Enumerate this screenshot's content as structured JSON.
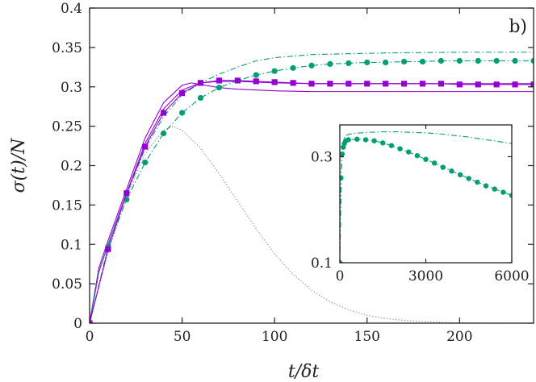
{
  "chart_data": [
    {
      "type": "line",
      "panel_label": "b)",
      "xlabel": "t/δt",
      "ylabel": "σ(t)/N",
      "xlim": [
        0,
        240
      ],
      "ylim": [
        0,
        0.4
      ],
      "xticks": [
        0,
        50,
        100,
        150,
        200
      ],
      "xtick_labels": [
        "0",
        "50",
        "100",
        "150",
        "200"
      ],
      "yticks": [
        0,
        0.05,
        0.1,
        0.15,
        0.2,
        0.25,
        0.3,
        0.35,
        0.4
      ],
      "ytick_labels": [
        "0",
        "0.05",
        "0.1",
        "0.15",
        "0.2",
        "0.25",
        "0.3",
        "0.35",
        "0.4"
      ],
      "grid": false,
      "legend": "none",
      "series": [
        {
          "style": "dotted",
          "color": "#808080",
          "marker": "none",
          "x": [
            0,
            10,
            20,
            30,
            40,
            45,
            50,
            60,
            70,
            80,
            90,
            100,
            110,
            120,
            130,
            140,
            150,
            160,
            170,
            180,
            190,
            200,
            210,
            220,
            240
          ],
          "y": [
            0,
            0.09,
            0.16,
            0.215,
            0.245,
            0.25,
            0.245,
            0.222,
            0.19,
            0.155,
            0.12,
            0.088,
            0.062,
            0.042,
            0.027,
            0.017,
            0.01,
            0.006,
            0.0035,
            0.002,
            0.001,
            0.0005,
            0.0002,
            0.0001,
            0
          ]
        },
        {
          "style": "solid",
          "color": "#9400d3",
          "marker": "none",
          "x": [
            0,
            5,
            10,
            20,
            30,
            40,
            50,
            55,
            60,
            70,
            80,
            100,
            120,
            150,
            200,
            240
          ],
          "y": [
            0,
            0.07,
            0.105,
            0.17,
            0.235,
            0.28,
            0.302,
            0.305,
            0.303,
            0.299,
            0.297,
            0.295,
            0.294,
            0.294,
            0.294,
            0.294
          ]
        },
        {
          "style": "solid",
          "color": "#9400d3",
          "marker": "none",
          "x": [
            0,
            5,
            10,
            20,
            30,
            40,
            50,
            60,
            70,
            80,
            100,
            120,
            150,
            200,
            240
          ],
          "y": [
            0,
            0.065,
            0.1,
            0.165,
            0.228,
            0.272,
            0.296,
            0.305,
            0.307,
            0.307,
            0.305,
            0.304,
            0.304,
            0.304,
            0.304
          ]
        },
        {
          "style": "dash-dot",
          "color": "#009e73",
          "marker": "none",
          "x": [
            0,
            5,
            10,
            20,
            30,
            40,
            50,
            60,
            70,
            80,
            90,
            100,
            120,
            140,
            160,
            200,
            240
          ],
          "y": [
            0,
            0.065,
            0.1,
            0.163,
            0.222,
            0.262,
            0.29,
            0.305,
            0.316,
            0.325,
            0.333,
            0.337,
            0.341,
            0.342,
            0.343,
            0.344,
            0.344
          ]
        },
        {
          "style": "dash-dot",
          "color": "#009e73",
          "marker": "circle",
          "x": [
            0,
            10,
            20,
            30,
            40,
            50,
            60,
            70,
            80,
            90,
            100,
            110,
            120,
            130,
            140,
            150,
            160,
            170,
            180,
            190,
            200,
            210,
            220,
            230,
            240
          ],
          "y": [
            0,
            0.097,
            0.157,
            0.204,
            0.241,
            0.267,
            0.286,
            0.299,
            0.308,
            0.315,
            0.32,
            0.324,
            0.327,
            0.329,
            0.33,
            0.331,
            0.331,
            0.332,
            0.332,
            0.333,
            0.333,
            0.333,
            0.333,
            0.333,
            0.333
          ]
        },
        {
          "style": "solid",
          "color": "#9400d3",
          "marker": "square",
          "x": [
            0,
            10,
            20,
            30,
            40,
            50,
            60,
            70,
            80,
            90,
            100,
            110,
            120,
            130,
            140,
            150,
            160,
            170,
            180,
            190,
            200,
            210,
            220,
            230,
            240
          ],
          "y": [
            0,
            0.094,
            0.165,
            0.224,
            0.267,
            0.292,
            0.305,
            0.308,
            0.308,
            0.307,
            0.306,
            0.305,
            0.304,
            0.304,
            0.304,
            0.304,
            0.304,
            0.304,
            0.304,
            0.304,
            0.303,
            0.303,
            0.303,
            0.303,
            0.303
          ]
        }
      ]
    },
    {
      "type": "line",
      "role": "inset",
      "xlim": [
        0,
        6000
      ],
      "ylim": [
        0.1,
        0.36
      ],
      "xticks": [
        0,
        3000,
        6000
      ],
      "xtick_labels": [
        "0",
        "3000",
        "6000"
      ],
      "yticks": [
        0.1,
        0.3
      ],
      "ytick_labels": [
        "0.1",
        "0.3"
      ],
      "series": [
        {
          "style": "dash-dot",
          "color": "#009e73",
          "marker": "none",
          "x": [
            0,
            50,
            100,
            150,
            200,
            300,
            500,
            1000,
            1500,
            2000,
            2500,
            3000,
            3500,
            4000,
            4500,
            5000,
            5500,
            6000
          ],
          "y": [
            0.1,
            0.27,
            0.32,
            0.335,
            0.34,
            0.342,
            0.344,
            0.346,
            0.347,
            0.347,
            0.346,
            0.345,
            0.343,
            0.34,
            0.337,
            0.333,
            0.329,
            0.325
          ]
        },
        {
          "style": "dash-dot",
          "color": "#009e73",
          "marker": "circle",
          "x": [
            0,
            40,
            80,
            120,
            160,
            200,
            300,
            600,
            900,
            1200,
            1500,
            1800,
            2100,
            2400,
            2700,
            3000,
            3300,
            3600,
            3900,
            4200,
            4500,
            4800,
            5100,
            5400,
            5700,
            6000
          ],
          "y": [
            0.1,
            0.26,
            0.305,
            0.318,
            0.325,
            0.33,
            0.332,
            0.333,
            0.332,
            0.33,
            0.326,
            0.321,
            0.315,
            0.309,
            0.302,
            0.295,
            0.288,
            0.28,
            0.273,
            0.266,
            0.259,
            0.252,
            0.245,
            0.239,
            0.233,
            0.227
          ]
        }
      ]
    }
  ]
}
